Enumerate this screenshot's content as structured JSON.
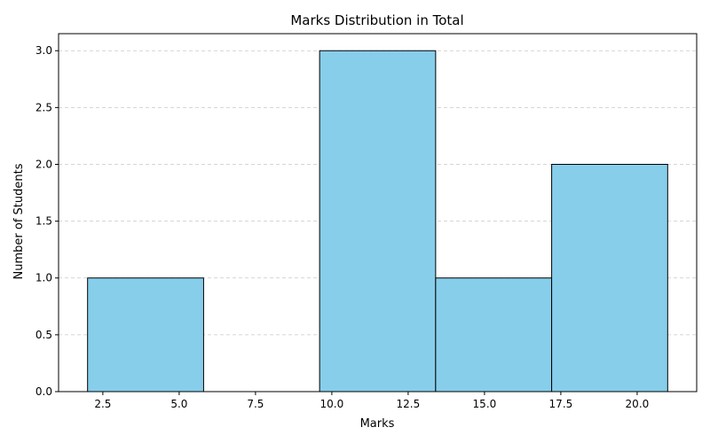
{
  "chart_data": {
    "type": "bar",
    "subtype": "histogram",
    "title": "Marks Distribution in Total",
    "xlabel": "Marks",
    "ylabel": "Number of Students",
    "bin_edges": [
      2.0,
      5.8,
      9.6,
      13.4,
      17.2,
      21.0
    ],
    "values": [
      1,
      0,
      3,
      1,
      2
    ],
    "xlim": [
      1.05,
      21.95
    ],
    "ylim": [
      0,
      3.15
    ],
    "xticks": [
      2.5,
      5.0,
      7.5,
      10.0,
      12.5,
      15.0,
      17.5,
      20.0
    ],
    "xtick_labels": [
      "2.5",
      "5.0",
      "7.5",
      "10.0",
      "12.5",
      "15.0",
      "17.5",
      "20.0"
    ],
    "yticks": [
      0,
      0.5,
      1.0,
      1.5,
      2.0,
      2.5,
      3.0
    ],
    "ytick_labels": [
      "0.0",
      "0.5",
      "1.0",
      "1.5",
      "2.0",
      "2.5",
      "3.0"
    ],
    "grid": "y-dashed",
    "bar_color": "#87ceeb",
    "edge_color": "#000000"
  }
}
